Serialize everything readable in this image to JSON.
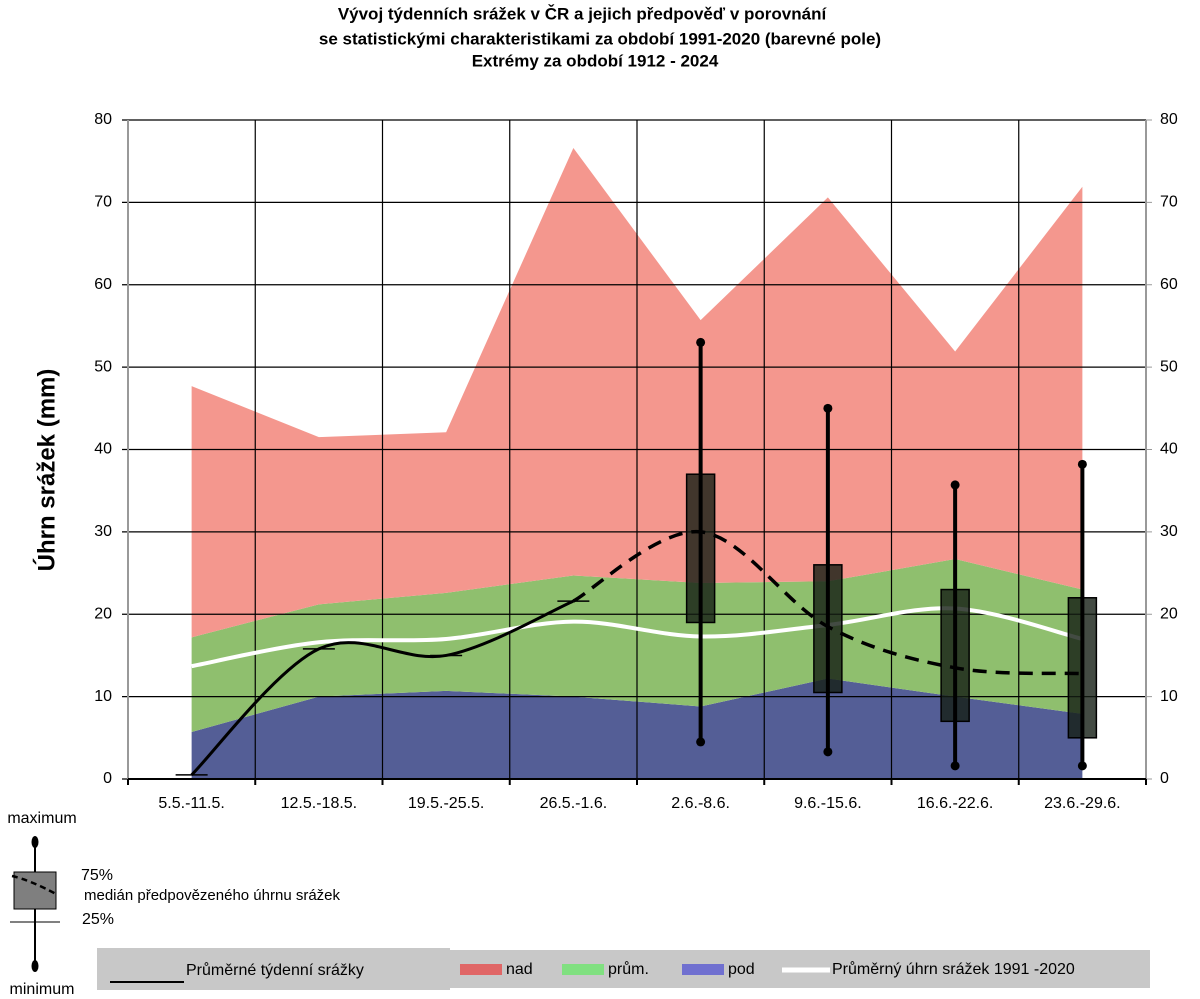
{
  "chart_data": {
    "type": "area",
    "title_lines": [
      "Vývoj týdenních srážek v ČR a jejich předpověď v porovnání",
      "se statistickými charakteristikami za období 1991-2020 (barevné pole)",
      "Extrémy za období 1912 - 2024"
    ],
    "y_label": "Úhrn srážek (mm)",
    "categories": [
      "5.5.-11.5.",
      "12.5.-18.5.",
      "19.5.-25.5.",
      "26.5.-1.6.",
      "2.6.-8.6.",
      "9.6.-15.6.",
      "16.6.-22.6.",
      "23.6.-29.6."
    ],
    "ylim": [
      0,
      80
    ],
    "yticks": [
      0,
      10,
      20,
      30,
      40,
      50,
      60,
      70,
      80
    ],
    "y2lim": [
      0,
      80
    ],
    "y2ticks": [
      0,
      10,
      20,
      30,
      40,
      50,
      60,
      70,
      80
    ],
    "grid": true,
    "series": [
      {
        "name": "pod",
        "color": "#545e96",
        "legend_color": "#7070d0",
        "values": [
          5.7,
          10,
          10.7,
          10,
          8.8,
          12.2,
          10,
          7.9
        ]
      },
      {
        "name": "prům.",
        "color": "#8fbf6e",
        "legend_color": "#80e080",
        "values": [
          11.5,
          11.2,
          11.9,
          14.7,
          15.0,
          11.8,
          16.7,
          15.1
        ]
      },
      {
        "name": "nad",
        "color": "#f4978e",
        "legend_color": "#e06666",
        "values": [
          30.5,
          20.3,
          19.5,
          51.9,
          31.9,
          46.6,
          25.2,
          48.9
        ]
      }
    ],
    "normal": {
      "name": "Průměrný úhrn srážek 1991 -2020",
      "color": "#ffffff",
      "values": [
        13.7,
        16.6,
        17.0,
        19.1,
        17.3,
        18.7,
        20.7,
        17.0
      ]
    },
    "observed": {
      "name": "Průměrné týdenní srážky",
      "color": "#000000",
      "values": [
        0.5,
        15.8,
        15.0,
        21.6,
        null,
        null,
        null,
        null
      ]
    },
    "forecast": {
      "name": "medián předpovězeného úhrnu srážek",
      "color": "#000000",
      "min": [
        null,
        null,
        null,
        null,
        4.5,
        3.3,
        1.6,
        1.6
      ],
      "q1": [
        null,
        null,
        null,
        null,
        19,
        10.5,
        7,
        5
      ],
      "median": [
        null,
        null,
        null,
        null,
        30,
        18.5,
        13.5,
        12.8
      ],
      "q3": [
        null,
        null,
        null,
        null,
        37,
        26,
        23,
        22
      ],
      "max": [
        null,
        null,
        null,
        null,
        53,
        45,
        35.7,
        38.2
      ]
    },
    "box_legend": {
      "max": "maximum",
      "q3": "75%",
      "q1": "25%",
      "min": "minimum"
    }
  }
}
